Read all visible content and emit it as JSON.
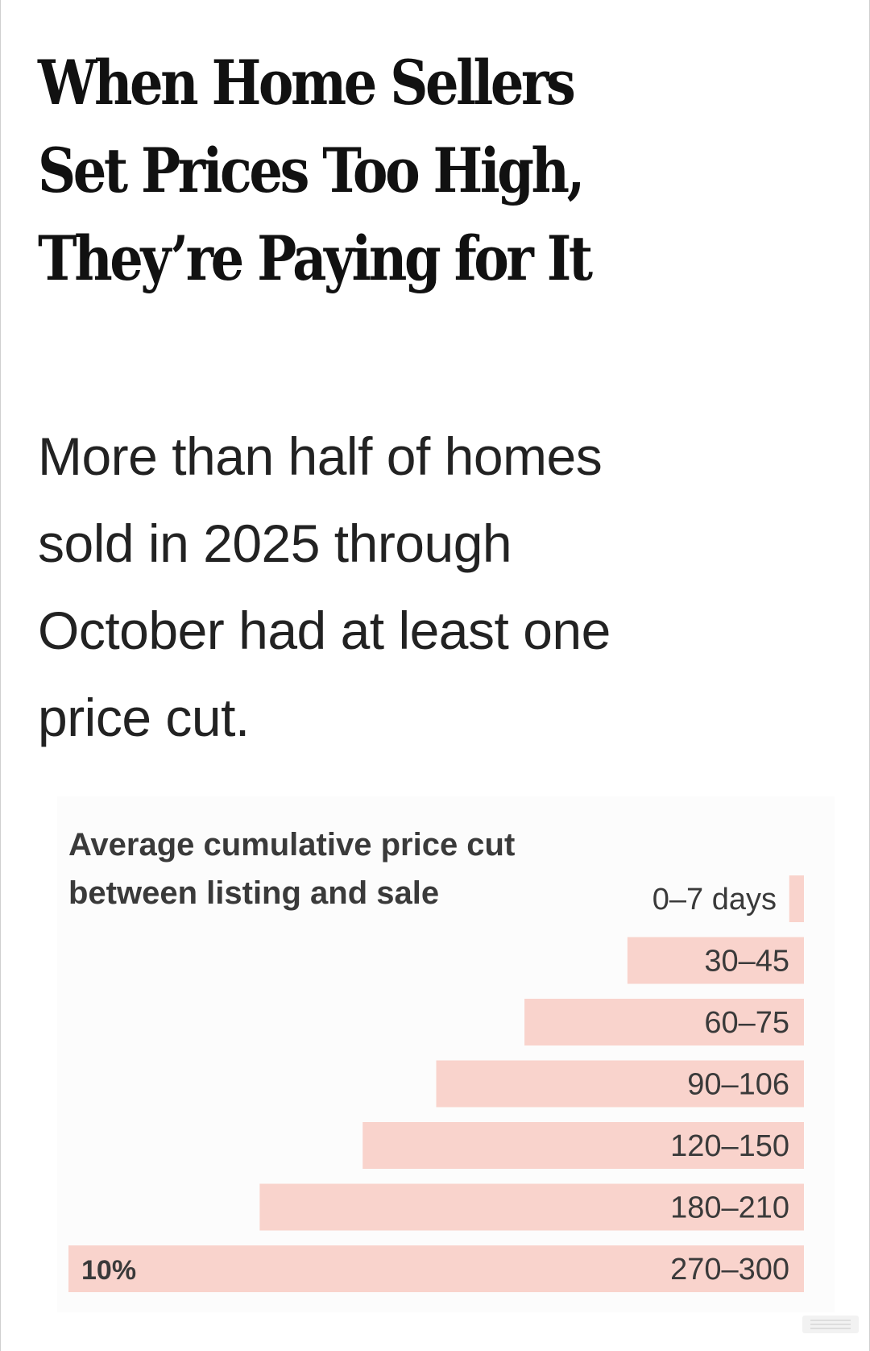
{
  "article": {
    "headline_lines": [
      "When Home Sellers",
      "Set Prices Too High,",
      "They’re Paying for It"
    ],
    "dek_lines": [
      "More than half of homes",
      "sold in 2025 through",
      "October had at least one",
      "price cut."
    ]
  },
  "colors": {
    "bar": "#f9d3cc",
    "text_dark": "#111111",
    "text_label": "#3a3a3a"
  },
  "chart_data": {
    "type": "bar",
    "orientation": "horizontal",
    "title_lines": [
      "Average cumulative price cut",
      "between listing and sale"
    ],
    "categories": [
      "0–7 days",
      "30–45",
      "60–75",
      "90–106",
      "120–150",
      "180–210",
      "270–300"
    ],
    "values": [
      0.2,
      2.4,
      3.8,
      5.0,
      6.0,
      7.4,
      10
    ],
    "unit": "%",
    "value_labels": [
      "",
      "",
      "",
      "",
      "",
      "",
      "10%"
    ],
    "xlim": [
      0,
      10
    ],
    "grid": false,
    "legend": "none"
  }
}
